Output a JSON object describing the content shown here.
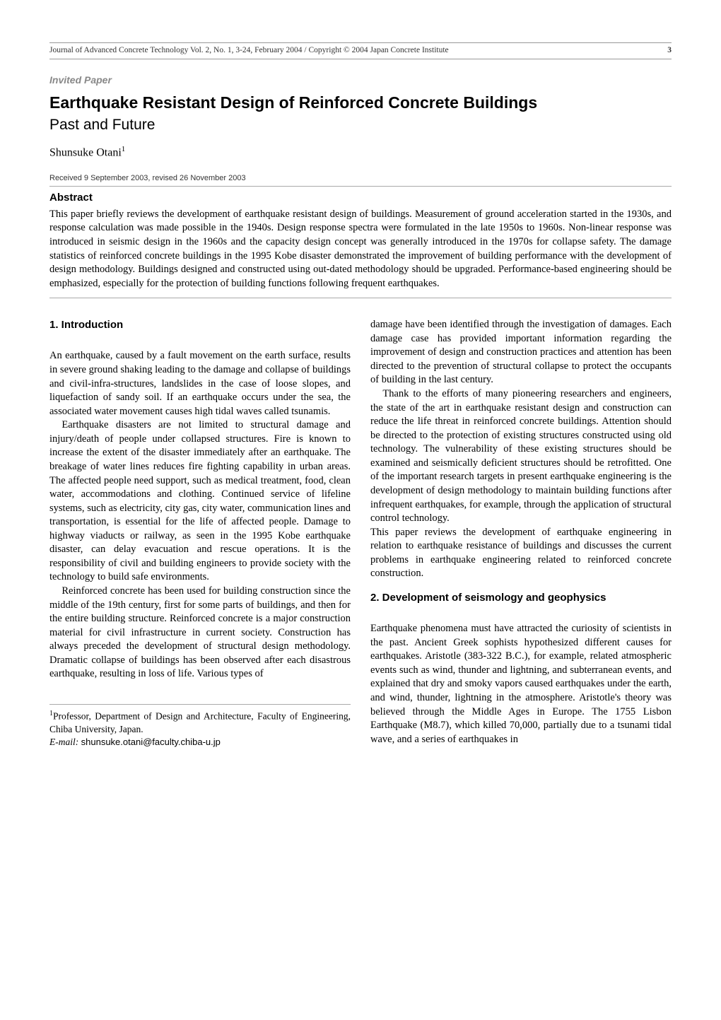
{
  "header": {
    "journal_line": "Journal of Advanced Concrete Technology Vol. 2, No. 1, 3-24, February 2004 / Copyright © 2004 Japan Concrete Institute",
    "page_number": "3"
  },
  "invited_label": "Invited Paper",
  "title": "Earthquake Resistant Design of Reinforced Concrete Buildings",
  "subtitle": "Past and Future",
  "author": "Shunsuke Otani",
  "author_sup": "1",
  "received": "Received 9 September 2003, revised 26 November 2003",
  "abstract": {
    "heading": "Abstract",
    "body": "This paper briefly reviews the development of earthquake resistant design of buildings. Measurement of ground acceleration started in the 1930s, and response calculation was made possible in the 1940s. Design response spectra were formulated in the late 1950s to 1960s. Non-linear response was introduced in seismic design in the 1960s and the capacity design concept was generally introduced in the 1970s for collapse safety. The damage statistics of reinforced concrete buildings in the 1995 Kobe disaster demonstrated the improvement of building performance with the development of design methodology. Buildings designed and constructed using out-dated methodology should be upgraded. Performance-based engineering should be emphasized, especially for the protection of building functions following frequent earthquakes."
  },
  "sections": {
    "s1": {
      "heading": "1. Introduction",
      "p1": "An earthquake, caused by a fault movement on the earth surface, results in severe ground shaking leading to the damage and collapse of buildings and civil-infra-structures, landslides in the case of loose slopes, and liquefaction of sandy soil. If an earthquake occurs under the sea, the associated water movement causes high tidal waves called tsunamis.",
      "p2": "Earthquake disasters are not limited to structural damage and injury/death of people under collapsed structures. Fire is known to increase the extent of the disaster immediately after an earthquake. The breakage of water lines reduces fire fighting capability in urban areas. The affected people need support, such as medical treatment, food, clean water, accommodations and clothing. Continued service of lifeline systems, such as electricity, city gas, city water, communication lines and transportation, is essential for the life of affected people. Damage to highway viaducts or railway, as seen in the 1995 Kobe earthquake disaster, can delay evacuation and rescue operations. It is the responsibility of civil and building engineers to provide society with the technology to build safe environments.",
      "p3": "Reinforced concrete has been used for building construction since the middle of the 19th century, first for some parts of buildings, and then for the entire building structure. Reinforced concrete is a major construction material for civil infrastructure in current society. Construction has always preceded the development of structural design methodology. Dramatic collapse of buildings has been observed after each disastrous earthquake, resulting in loss of life. Various types of",
      "p4": "damage have been identified through the investigation of damages. Each damage case has provided important information regarding the improvement of design and construction practices and attention has been directed to the prevention of structural collapse to protect the occupants of building in the last century.",
      "p5": "Thank to the efforts of many pioneering researchers and engineers, the state of the art in earthquake resistant design and construction can reduce the life threat in reinforced concrete buildings. Attention should be directed to the protection of existing structures constructed using old technology. The vulnerability of these existing structures should be examined and seismically deficient structures should be retrofitted. One of the important research targets in present earthquake engineering is the development of design methodology to maintain building functions after infrequent earthquakes, for example, through the application of structural control technology.",
      "p6": "This paper reviews the development of earthquake engineering in relation to earthquake resistance of buildings and discusses the current problems in earthquake engineering related to reinforced concrete construction."
    },
    "s2": {
      "heading": "2. Development of seismology and geophysics",
      "p1": "Earthquake phenomena must have attracted the curiosity of scientists in the past. Ancient Greek sophists hypothesized different causes for earthquakes. Aristotle (383-322 B.C.), for example, related atmospheric events such as wind, thunder and lightning, and subterranean events, and explained that dry and smoky vapors caused earthquakes under the earth, and wind, thunder, lightning in the atmosphere. Aristotle's theory was believed through the Middle Ages in Europe. The 1755 Lisbon Earthquake (M8.7), which killed 70,000, partially due to a tsunami tidal wave, and a series of earthquakes in"
    }
  },
  "footnote": {
    "sup": "1",
    "text": "Professor, Department of Design and Architecture, Faculty of Engineering, Chiba University, Japan.",
    "email_label": "E-mail:",
    "email": "shunsuke.otani@faculty.chiba-u.jp"
  }
}
